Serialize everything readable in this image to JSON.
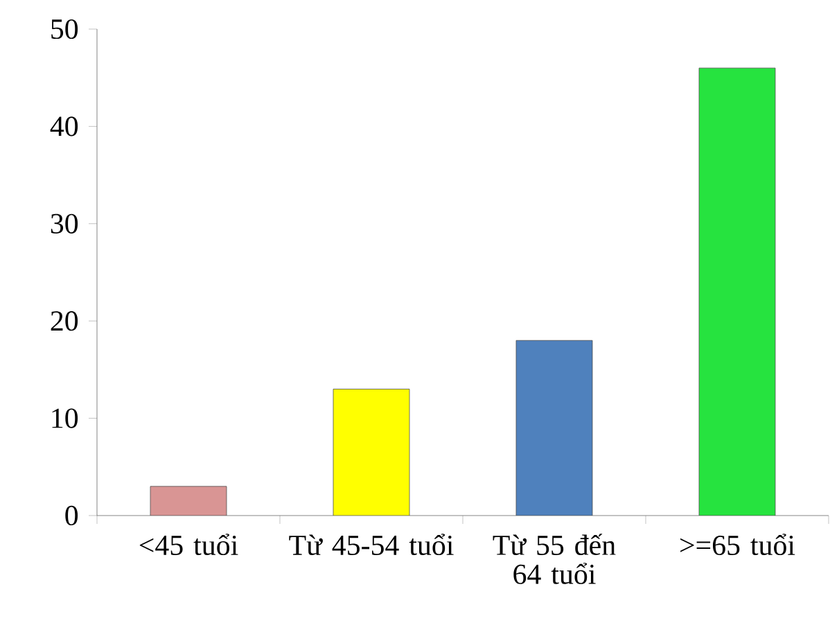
{
  "chart_data": {
    "type": "bar",
    "categories": [
      "<45 tuổi",
      "Từ 45-54 tuổi",
      "Từ 55 đến 64 tuổi",
      ">=65 tuổi"
    ],
    "values": [
      3,
      13,
      18,
      46
    ],
    "colors": [
      "#d99594",
      "#ffff00",
      "#4f81bd",
      "#26e33f"
    ],
    "ylim": [
      0,
      50
    ],
    "yticks": [
      0,
      10,
      20,
      30,
      40,
      50
    ],
    "grid": false
  }
}
